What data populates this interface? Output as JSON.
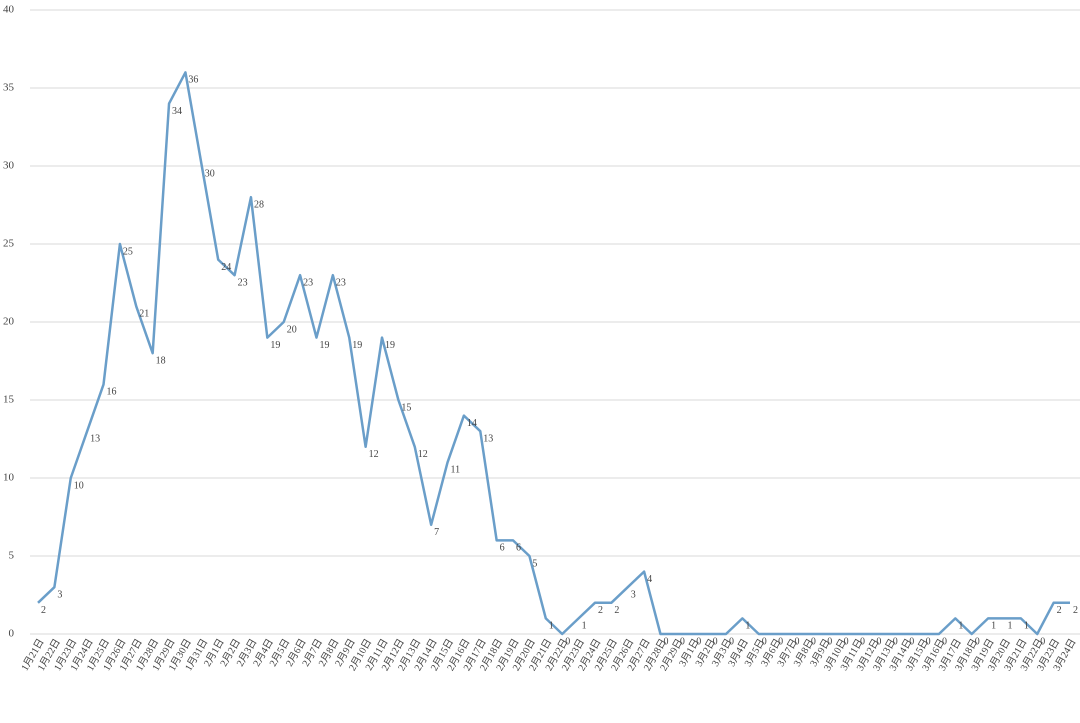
{
  "chart_data": {
    "type": "line",
    "categories": [
      "1月21日",
      "1月22日",
      "1月23日",
      "1月24日",
      "1月25日",
      "1月26日",
      "1月27日",
      "1月28日",
      "1月29日",
      "1月30日",
      "1月31日",
      "2月1日",
      "2月2日",
      "2月3日",
      "2月4日",
      "2月5日",
      "2月6日",
      "2月7日",
      "2月8日",
      "2月9日",
      "2月10日",
      "2月11日",
      "2月12日",
      "2月13日",
      "2月14日",
      "2月15日",
      "2月16日",
      "2月17日",
      "2月18日",
      "2月19日",
      "2月20日",
      "2月21日",
      "2月22日",
      "2月23日",
      "2月24日",
      "2月25日",
      "2月26日",
      "2月27日",
      "2月28日",
      "2月29日",
      "3月1日",
      "3月2日",
      "3月3日",
      "3月4日",
      "3月5日",
      "3月6日",
      "3月7日",
      "3月8日",
      "3月9日",
      "3月10日",
      "3月11日",
      "3月12日",
      "3月13日",
      "3月14日",
      "3月15日",
      "3月16日",
      "3月17日",
      "3月18日",
      "3月19日",
      "3月20日",
      "3月21日",
      "3月22日",
      "3月23日",
      "3月24日"
    ],
    "values": [
      2,
      3,
      10,
      13,
      16,
      25,
      21,
      18,
      34,
      36,
      30,
      24,
      23,
      28,
      19,
      20,
      23,
      19,
      23,
      19,
      12,
      19,
      15,
      12,
      7,
      11,
      14,
      13,
      6,
      6,
      5,
      1,
      0,
      1,
      2,
      2,
      3,
      4,
      0,
      0,
      0,
      0,
      0,
      1,
      0,
      0,
      0,
      0,
      0,
      0,
      0,
      0,
      0,
      0,
      0,
      0,
      1,
      0,
      1,
      1,
      1,
      0,
      2,
      2
    ],
    "color": "#6a9ec9",
    "ylim": [
      0,
      40
    ],
    "yticks": [
      0,
      5,
      10,
      15,
      20,
      25,
      30,
      35,
      40
    ],
    "grid": true
  }
}
